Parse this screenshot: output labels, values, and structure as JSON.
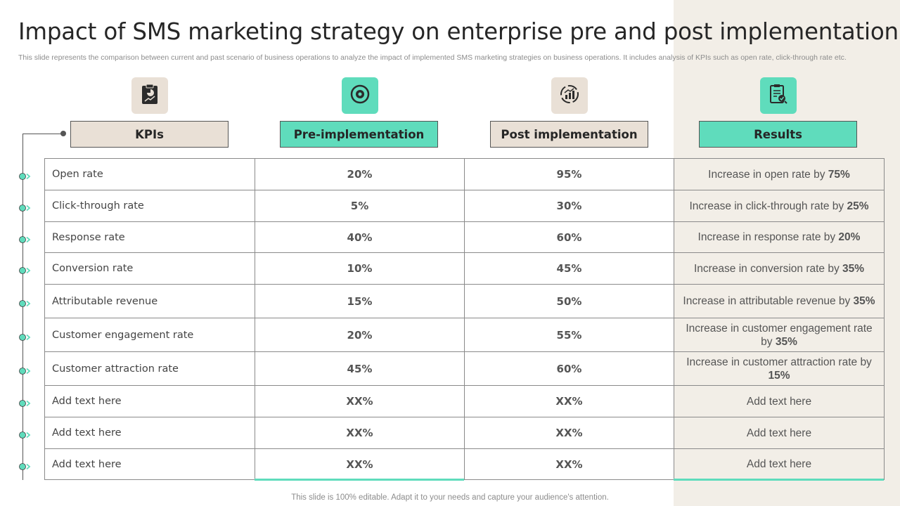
{
  "title": "Impact of SMS marketing strategy on enterprise pre and post implementation",
  "subtitle": "This slide represents the comparison between current and past scenario of business operations to analyze the impact of implemented SMS marketing strategies on business operations. It includes analysis of KPIs such as open rate, click-through rate etc.",
  "colors": {
    "teal": "#5fdcbc",
    "beige": "#e9e0d6",
    "band": "#f2eee7"
  },
  "icons": [
    "clipboard-chart-icon",
    "target-cycle-icon",
    "growth-chart-icon",
    "checklist-search-icon"
  ],
  "headers": [
    "KPIs",
    "Pre-implementation",
    "Post implementation",
    "Results"
  ],
  "rows": [
    {
      "kpi": "Open rate",
      "pre": "20%",
      "post": "95%",
      "result_text": "Increase  in open rate by ",
      "result_value": "75%"
    },
    {
      "kpi": "Click-through rate",
      "pre": "5%",
      "post": "30%",
      "result_text": "Increase  in click-through  rate by ",
      "result_value": "25%"
    },
    {
      "kpi": "Response rate",
      "pre": "40%",
      "post": "60%",
      "result_text": "Increase  in response rate by ",
      "result_value": "20%"
    },
    {
      "kpi": "Conversion rate",
      "pre": "10%",
      "post": "45%",
      "result_text": "Increase  in conversion  rate by ",
      "result_value": "35%"
    },
    {
      "kpi": "Attributable revenue",
      "pre": "15%",
      "post": "50%",
      "result_text": "Increase  in attributable  revenue by ",
      "result_value": "35%"
    },
    {
      "kpi": "Customer engagement rate",
      "pre": "20%",
      "post": "55%",
      "result_text": "Increase  in customer  engagement rate by ",
      "result_value": "35%"
    },
    {
      "kpi": "Customer attraction rate",
      "pre": "45%",
      "post": "60%",
      "result_text": "Increase  in customer  attraction rate by ",
      "result_value": "15%"
    },
    {
      "kpi": "Add text here",
      "pre": "XX%",
      "post": "XX%",
      "result_text": "Add text here",
      "result_value": ""
    },
    {
      "kpi": "Add text here",
      "pre": "XX%",
      "post": "XX%",
      "result_text": "Add text here",
      "result_value": ""
    },
    {
      "kpi": "Add text here",
      "pre": "XX%",
      "post": "XX%",
      "result_text": "Add text here",
      "result_value": ""
    }
  ],
  "footer": "This slide is 100% editable. Adapt it to your needs and capture your audience's attention."
}
